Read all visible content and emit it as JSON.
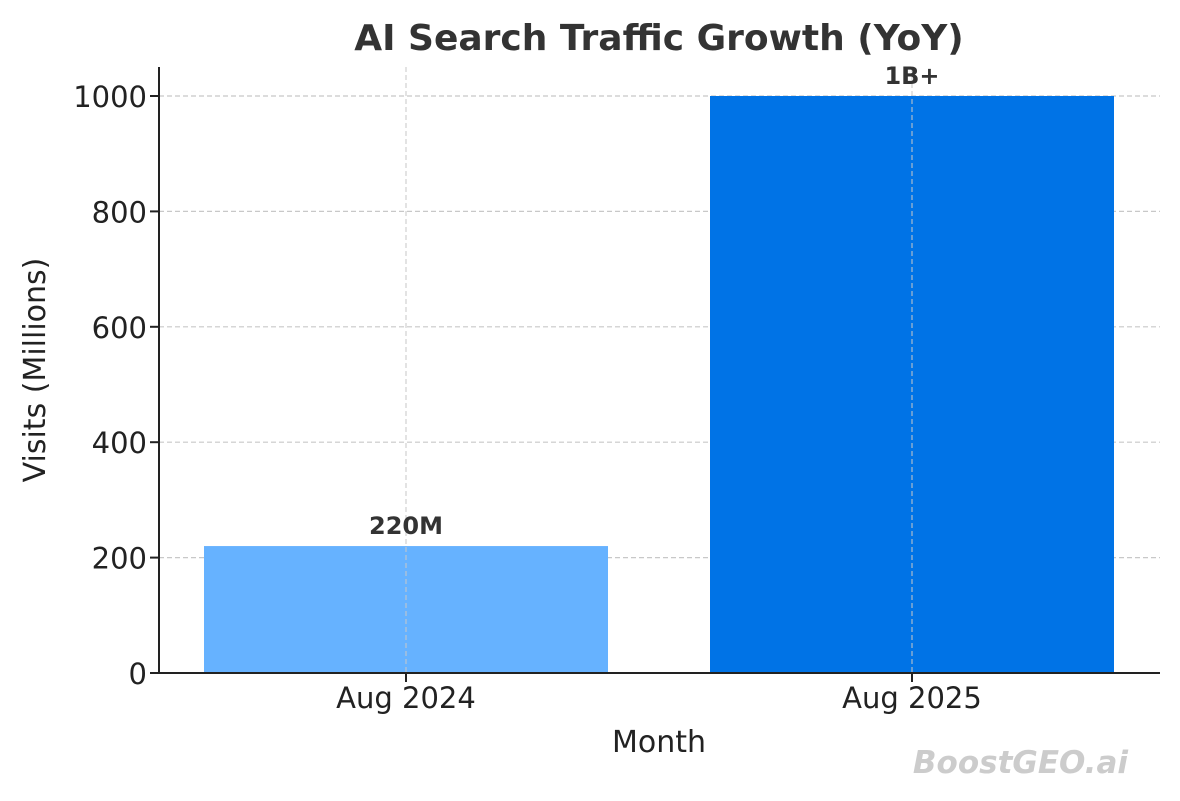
{
  "chart_data": {
    "type": "bar",
    "title": "AI Search Traffic Growth (YoY)",
    "xlabel": "Month",
    "ylabel": "Visits (Millions)",
    "categories": [
      "Aug 2024",
      "Aug 2025"
    ],
    "values": [
      220,
      1000
    ],
    "data_labels": [
      "220M",
      "1B+"
    ],
    "bar_colors": [
      "#66b2ff",
      "#0073e6"
    ],
    "ylim": [
      0,
      1050
    ],
    "yticks": [
      0,
      200,
      400,
      600,
      800,
      1000
    ],
    "grid": true
  },
  "watermark": "BoostGEO.ai"
}
